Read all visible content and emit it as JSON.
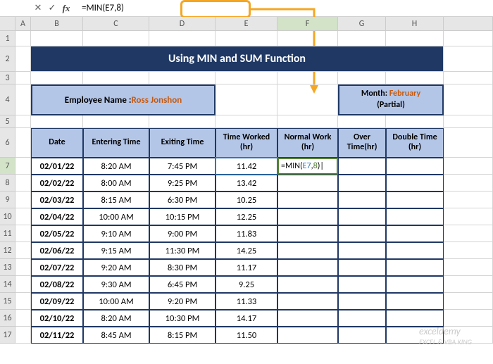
{
  "formula_bar": {
    "cancel": "✕",
    "confirm": "✓",
    "fx": "fx",
    "formula": "=MIN(E7,8)"
  },
  "columns": [
    "A",
    "B",
    "C",
    "D",
    "E",
    "F",
    "G",
    "H"
  ],
  "active_col": "F",
  "active_row": "7",
  "title": "Using MIN and SUM Function",
  "employee": {
    "label": "Employee Name : ",
    "name": "Ross Jonshon"
  },
  "month": {
    "label": "Month: ",
    "value": "February",
    "sub": "(Partial)"
  },
  "headers": {
    "date": "Date",
    "enter": "Entering Time",
    "exit": "Exiting Time",
    "worked": "Time Worked (hr)",
    "normal": "Normal Work (hr)",
    "over": "Over Time(hr)",
    "double": "Double Time (hr)"
  },
  "editing_formula": {
    "prefix": "=MIN(",
    "ref": "E7",
    "mid": ",",
    "num": "8",
    "suffix": ")"
  },
  "rows": [
    {
      "date": "02/01/22",
      "enter": "8:20 AM",
      "exit": "7:45 PM",
      "worked": "11.42"
    },
    {
      "date": "02/02/22",
      "enter": "8:00 AM",
      "exit": "9:25 PM",
      "worked": "13.42"
    },
    {
      "date": "02/03/22",
      "enter": "8:15 AM",
      "exit": "6:30 PM",
      "worked": "10.25"
    },
    {
      "date": "02/04/22",
      "enter": "10:00 AM",
      "exit": "10:15 PM",
      "worked": "12.25"
    },
    {
      "date": "02/05/22",
      "enter": "9:10 AM",
      "exit": "9:00 PM",
      "worked": "11.83"
    },
    {
      "date": "02/06/22",
      "enter": "9:15 AM",
      "exit": "11:30 PM",
      "worked": "14.25"
    },
    {
      "date": "02/07/22",
      "enter": "9:20 AM",
      "exit": "8:30 PM",
      "worked": "11.17"
    },
    {
      "date": "02/08/22",
      "enter": "9:30 AM",
      "exit": "6:45 PM",
      "worked": "9.25"
    },
    {
      "date": "02/09/22",
      "enter": "10:00 AM",
      "exit": "9:20 PM",
      "worked": "11.33"
    },
    {
      "date": "02/10/22",
      "enter": "8:20 AM",
      "exit": "10:30 PM",
      "worked": "14.17"
    },
    {
      "date": "02/11/22",
      "enter": "8:45 AM",
      "exit": "8:15 PM",
      "worked": "11.50"
    }
  ],
  "row_labels": [
    "1",
    "2",
    "3",
    "4",
    "5",
    "6",
    "7",
    "8",
    "9",
    "10",
    "11",
    "12",
    "13",
    "14",
    "15",
    "16",
    "17"
  ],
  "watermark": {
    "main": "exceldemy",
    "sub": "EXCEL & VBA KING"
  },
  "colors": {
    "title_bg": "#1f3864",
    "box_bg": "#b4c6e7",
    "accent": "#c55a11",
    "highlight": "#f5a623",
    "ref_blue": "#2e75b6",
    "edit_green": "#548235"
  }
}
